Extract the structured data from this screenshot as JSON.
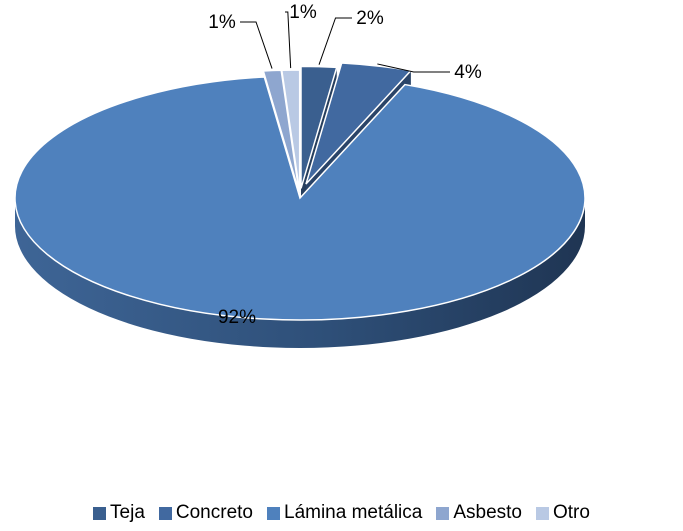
{
  "chart_data": {
    "type": "pie",
    "style": "3d-exploded",
    "title": "",
    "categories": [
      "Teja",
      "Concreto",
      "Lámina metálica",
      "Asbesto",
      "Otro"
    ],
    "values": [
      2,
      4,
      92,
      1,
      1
    ],
    "data_labels": [
      "2%",
      "4%",
      "92%",
      "1%",
      "1%"
    ],
    "colors": [
      "#3a5f8f",
      "#4169a0",
      "#4f81bd",
      "#8ea6cf",
      "#b9c9e4"
    ],
    "legend_position": "bottom"
  }
}
